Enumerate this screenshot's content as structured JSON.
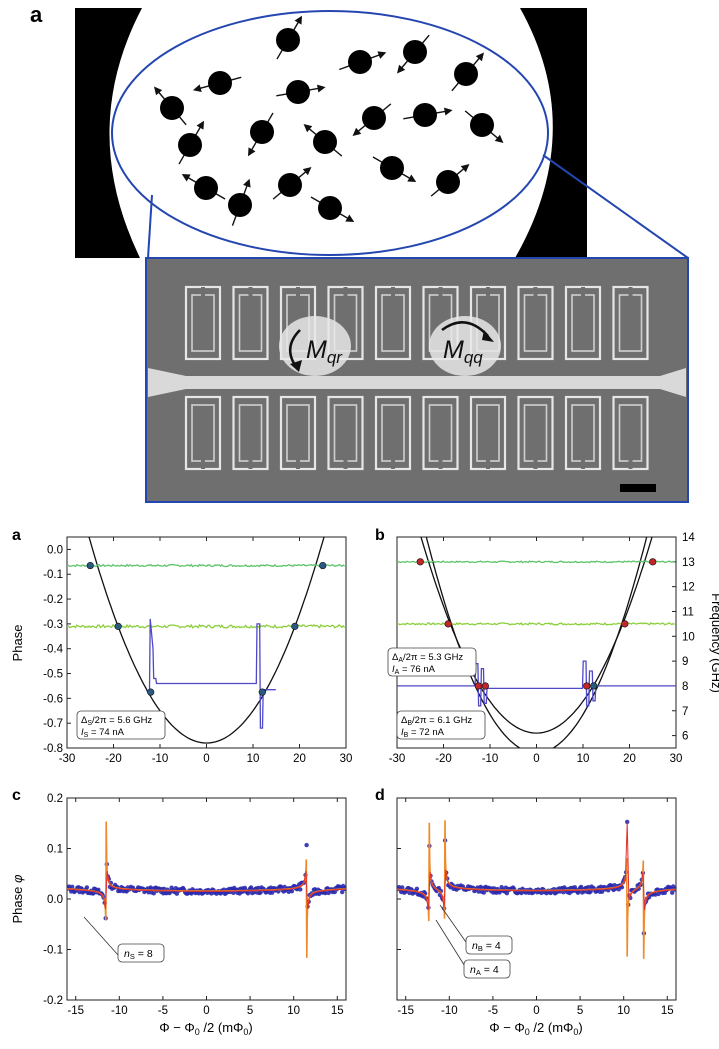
{
  "figure_top": {
    "panel_letter": "a",
    "labels": {
      "m_qr_main": "M",
      "m_qr_sub": "qr",
      "m_qq_main": "M",
      "m_qq_sub": "qq"
    }
  },
  "panels": {
    "a": {
      "letter": "a",
      "ylabel": "Phase",
      "yticks": [
        "0.0",
        "-0.1",
        "-0.2",
        "-0.3",
        "-0.4",
        "-0.5",
        "-0.6",
        "-0.7",
        "-0.8"
      ],
      "xticks": [
        "-30",
        "-20",
        "-10",
        "0",
        "10",
        "20",
        "30"
      ],
      "annotation": {
        "l1_main": "Δ",
        "l1_sub": "S",
        "l1_rest": "/2π = 5.6 GHz",
        "l2_main": "I",
        "l2_sub": "S",
        "l2_rest": " = 74 nA"
      }
    },
    "b": {
      "letter": "b",
      "ylabel_right": "Frequency (GHz)",
      "yticks_right": [
        "14",
        "13",
        "12",
        "11",
        "10",
        "9",
        "8",
        "7",
        "6"
      ],
      "xticks": [
        "-30",
        "-20",
        "-10",
        "0",
        "10",
        "20",
        "30"
      ],
      "annotation_a": {
        "l1_main": "Δ",
        "l1_sub": "A",
        "l1_rest": "/2π = 5.3 GHz",
        "l2_main": "I",
        "l2_sub": "A",
        "l2_rest": " = 76 nA"
      },
      "annotation_b": {
        "l1_main": "Δ",
        "l1_sub": "B",
        "l1_rest": "/2π = 6.1 GHz",
        "l2_main": "I",
        "l2_sub": "B",
        "l2_rest": " = 72 nA"
      }
    },
    "c": {
      "letter": "c",
      "ylabel_main": "Phase ",
      "ylabel_sym": "φ",
      "yticks": [
        "0.2",
        "0.1",
        "0.0",
        "-0.1",
        "-0.2"
      ],
      "xticks": [
        "-15",
        "-10",
        "-5",
        "0",
        "5",
        "10",
        "15"
      ],
      "xlabel_prefix": "Φ − Φ",
      "xlabel_sub": "0",
      "xlabel_mid": " /2 (mΦ",
      "xlabel_sub2": "0",
      "xlabel_end": ")",
      "annotation": {
        "main": "n",
        "sub": "S",
        "rest": " = 8"
      }
    },
    "d": {
      "letter": "d",
      "xticks": [
        "-15",
        "-10",
        "-5",
        "0",
        "5",
        "10",
        "15"
      ],
      "xlabel_prefix": "Φ − Φ",
      "xlabel_sub": "0",
      "xlabel_mid": " /2 (mΦ",
      "xlabel_sub2": "0",
      "xlabel_end": ")",
      "annotation_b": {
        "main": "n",
        "sub": "B",
        "rest": " = 4"
      },
      "annotation_a": {
        "main": "n",
        "sub": "A",
        "rest": " = 4"
      }
    }
  },
  "colors": {
    "green_top": "#5cc46a",
    "green_mid": "#8ccf3c",
    "purple": "#4f49c8",
    "fit_orange": "#ef8a2a",
    "fit_red": "#e0302a",
    "dot_blue": "#2b2bb0",
    "marker_teal": "#2a5a80",
    "marker_red": "#c0262a",
    "ellipse_blue": "#2446b0"
  },
  "chart_data": [
    {
      "type": "line",
      "panel": "a",
      "xlabel": "",
      "ylabel": "Phase",
      "xlim": [
        -30,
        30
      ],
      "ylim": [
        -0.8,
        0.05
      ],
      "series": [
        {
          "values": [
            [
              -30,
              -0.07
            ],
            [
              -20,
              -0.06
            ],
            [
              -10,
              -0.06
            ],
            [
              0,
              -0.06
            ],
            [
              10,
              -0.06
            ],
            [
              20,
              -0.06
            ],
            [
              30,
              -0.06
            ]
          ]
        },
        {
          "values": [
            [
              -30,
              -0.31
            ],
            [
              -20,
              -0.31
            ],
            [
              -10,
              -0.31
            ],
            [
              0,
              -0.31
            ],
            [
              10,
              -0.31
            ],
            [
              20,
              -0.31
            ],
            [
              30,
              -0.31
            ]
          ]
        },
        {
          "values": [
            [
              -13,
              -0.57
            ],
            [
              -12,
              -0.53
            ],
            [
              -11.6,
              -0.38
            ],
            [
              -11,
              -0.53
            ],
            [
              0,
              -0.54
            ],
            [
              11,
              -0.53
            ],
            [
              11.6,
              -0.3
            ],
            [
              12,
              -0.72
            ],
            [
              13,
              -0.57
            ],
            [
              15,
              -0.56
            ]
          ]
        }
      ],
      "frequency_curve": {
        "vertex_x": 0,
        "vertex_freq_ghz": 5.6,
        "crossings_x": [
          -25,
          -19,
          -12,
          12,
          19,
          25
        ]
      }
    },
    {
      "type": "line",
      "panel": "b",
      "ylabel": "Frequency (GHz)",
      "xlim": [
        -30,
        30
      ],
      "ylim": [
        5.5,
        14
      ],
      "series": [
        {
          "values": [
            [
              -30,
              13
            ],
            [
              0,
              13
            ],
            [
              30,
              13
            ]
          ]
        },
        {
          "values": [
            [
              -30,
              10.5
            ],
            [
              0,
              10.5
            ],
            [
              30,
              10.5
            ]
          ]
        },
        {
          "values": [
            [
              -30,
              8
            ],
            [
              -13,
              8
            ],
            [
              -12,
              8.8
            ],
            [
              -11,
              7.2
            ],
            [
              0,
              7.9
            ],
            [
              10,
              8.9
            ],
            [
              11,
              7.3
            ],
            [
              12,
              8.6
            ],
            [
              13,
              8
            ],
            [
              15,
              8
            ]
          ]
        }
      ],
      "frequency_curves": [
        {
          "vertex_x": 0,
          "vertex_freq_ghz": 5.3
        },
        {
          "vertex_x": 0,
          "vertex_freq_ghz": 6.1
        }
      ]
    },
    {
      "type": "scatter",
      "panel": "c",
      "ylabel": "Phase φ",
      "xlim": [
        -16,
        16
      ],
      "ylim": [
        -0.2,
        0.2
      ],
      "peaks_x": [
        -11.5,
        11.5
      ],
      "peak_max": 0.18,
      "peak_min": -0.14
    },
    {
      "type": "scatter",
      "panel": "d",
      "xlim": [
        -16,
        16
      ],
      "ylim": [
        -0.2,
        0.2
      ],
      "peaks_x": [
        -12.3,
        -10.5,
        10.4,
        12.3
      ],
      "peak_max": 0.13,
      "peak_min": -0.14
    }
  ]
}
